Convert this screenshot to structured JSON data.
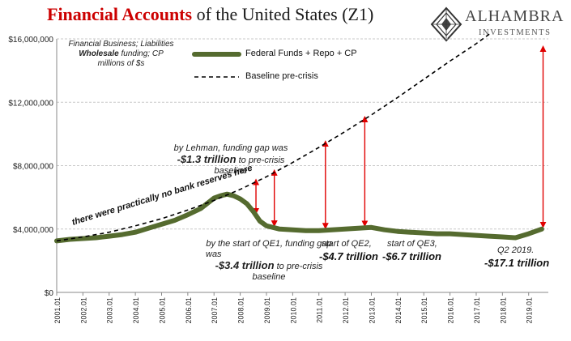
{
  "title": {
    "red": "Financial Accounts",
    "rest": " of the United States (Z1)"
  },
  "logo": {
    "name": "ALHAMBRA",
    "sub": "INVESTMENTS",
    "icon": "diamond-logo-icon"
  },
  "colors": {
    "funding": "#556b2f",
    "baseline": "#000000",
    "arrows": "#e00000",
    "title": "#cc0000"
  },
  "note": {
    "line1": "Financial Business; Liabilities",
    "line2_bold": "Wholesale",
    "line2_rest": " funding; CP",
    "line3": "millions of $s"
  },
  "annotations": {
    "reserves": "there were practically no bank reserves here",
    "lehman_pre": "by Lehman, funding gap was",
    "lehman_val": "-$1.3 trillion",
    "lehman_post": "to pre-crisis",
    "lehman_end": "baseline",
    "qe1_pre": "by the start of QE1, funding gap",
    "qe1_was": "was",
    "qe1_val": "-$3.4 trillion",
    "qe1_post": "to pre-crisis",
    "qe1_end": "baseline",
    "qe2_pre": "start of QE2,",
    "qe2_val": "-$4.7 trillion",
    "qe3_pre": "start of QE3,",
    "qe3_val": "-$6.7 trillion",
    "q2_pre": "Q2 2019.",
    "q2_val": "-$17.1 trillion"
  },
  "chart_data": {
    "type": "line",
    "xlim": [
      2001.0,
      2019.75
    ],
    "ylim": [
      0,
      16000000
    ],
    "yticks": [
      0,
      4000000,
      8000000,
      12000000,
      16000000
    ],
    "ytick_labels": [
      "$0",
      "$4,000,000",
      "$8,000,000",
      "$12,000,000",
      "$16,000,000"
    ],
    "xtick_labels": [
      "2001.01",
      "2002.01",
      "2003.01",
      "2004.01",
      "2005.01",
      "2006.01",
      "2007.01",
      "2008.01",
      "2009.01",
      "2010.01",
      "2011.01",
      "2012.01",
      "2013.01",
      "2014.01",
      "2015.01",
      "2016.01",
      "2017.01",
      "2018.01",
      "2019.01"
    ],
    "grid": "horizontal",
    "legend": "top-left",
    "series": [
      {
        "name": "Federal Funds + Repo + CP",
        "style": "solid-thick",
        "x": [
          2001.0,
          2001.5,
          2002.0,
          2002.5,
          2003.0,
          2003.5,
          2004.0,
          2004.5,
          2005.0,
          2005.5,
          2006.0,
          2006.5,
          2007.0,
          2007.25,
          2007.5,
          2007.75,
          2008.0,
          2008.25,
          2008.5,
          2008.75,
          2009.0,
          2009.5,
          2010.0,
          2010.5,
          2011.0,
          2011.5,
          2012.0,
          2012.5,
          2013.0,
          2013.5,
          2014.0,
          2014.5,
          2015.0,
          2015.5,
          2016.0,
          2016.5,
          2017.0,
          2017.5,
          2018.0,
          2018.5,
          2019.0,
          2019.5
        ],
        "y": [
          3250000,
          3350000,
          3400000,
          3450000,
          3550000,
          3650000,
          3800000,
          4050000,
          4300000,
          4550000,
          4900000,
          5300000,
          5950000,
          6100000,
          6200000,
          6100000,
          5900000,
          5600000,
          5100000,
          4500000,
          4200000,
          4000000,
          3950000,
          3900000,
          3900000,
          3950000,
          4000000,
          4050000,
          4100000,
          3950000,
          3850000,
          3800000,
          3750000,
          3700000,
          3700000,
          3650000,
          3600000,
          3550000,
          3500000,
          3450000,
          3700000,
          4000000
        ]
      },
      {
        "name": "Baseline pre-crisis",
        "style": "dashed",
        "x": [
          2001.0,
          2002.0,
          2003.0,
          2004.0,
          2005.0,
          2006.0,
          2007.0,
          2008.0,
          2009.0,
          2010.0,
          2011.0,
          2012.0,
          2013.0,
          2014.0,
          2015.0,
          2016.0,
          2017.0,
          2017.5
        ],
        "y": [
          3250000,
          3500000,
          3800000,
          4200000,
          4650000,
          5200000,
          5800000,
          6500000,
          7300000,
          8200000,
          9150000,
          10150000,
          11200000,
          12300000,
          13450000,
          14600000,
          15700000,
          16300000
        ]
      }
    ],
    "gaps": [
      {
        "x": 2008.6,
        "label": "-$1.3 trillion"
      },
      {
        "x": 2009.3,
        "label": "-$3.4 trillion"
      },
      {
        "x": 2011.25,
        "label": "-$4.7 trillion"
      },
      {
        "x": 2012.75,
        "label": "-$6.7 trillion"
      },
      {
        "x": 2019.55,
        "label": "-$17.1 trillion"
      }
    ]
  }
}
